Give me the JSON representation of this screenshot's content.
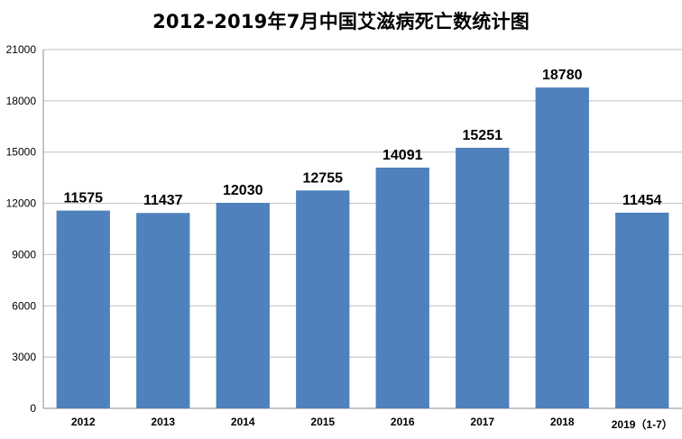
{
  "chart_data": {
    "type": "bar",
    "title": "2012-2019年7月中国艾滋病死亡数统计图",
    "xlabel": "",
    "ylabel": "",
    "categories": [
      "2012",
      "2013",
      "2014",
      "2015",
      "2016",
      "2017",
      "2018",
      "2019（1-7）"
    ],
    "values": [
      11575,
      11437,
      12030,
      12755,
      14091,
      15251,
      18780,
      11454
    ],
    "data_labels": [
      "11575",
      "11437",
      "12030",
      "12755",
      "14091",
      "15251",
      "18780",
      "11454"
    ],
    "ylim": [
      0,
      21000
    ],
    "yticks": [
      0,
      3000,
      6000,
      9000,
      12000,
      15000,
      18000,
      21000
    ],
    "ytick_labels": [
      "0",
      "3000",
      "6000",
      "9000",
      "12000",
      "15000",
      "18000",
      "21000"
    ],
    "grid": true,
    "legend": "none",
    "bar_color": "#4f81bd",
    "grid_color": "#bfbfbf"
  }
}
